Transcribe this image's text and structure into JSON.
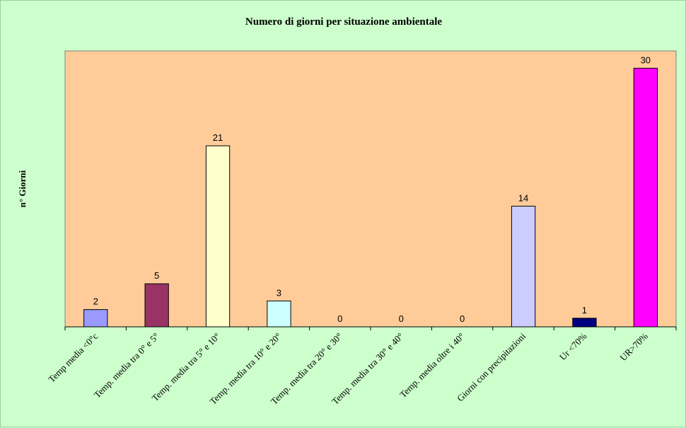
{
  "chart_data": {
    "type": "bar",
    "title": "Numero di giorni per situazione ambientale",
    "ylabel": "n° Giorni",
    "xlabel": "",
    "ylim": [
      0,
      32
    ],
    "grid": false,
    "legend": "none",
    "plot_background": "#ffcc99",
    "page_background": "#ccffcc",
    "categories": [
      "Temp media <0°c",
      "Temp. media tra 0° e 5°",
      "Temp. media tra 5° e 10°",
      "Temp. media tra 10° e 20°",
      "Temp. media tra 20° e 30°",
      "Temp. media tra 30° e 40°",
      "Temp. media oltre i 40°",
      "Giorni con precipitazioni",
      "Ur <70%",
      "UR>70%"
    ],
    "values": [
      2,
      5,
      21,
      3,
      0,
      0,
      0,
      14,
      1,
      30
    ],
    "colors": [
      "#9999ff",
      "#993366",
      "#ffffcc",
      "#ccffff",
      "#660066",
      "#ff8080",
      "#0066cc",
      "#ccccff",
      "#000080",
      "#ff00ff"
    ]
  }
}
